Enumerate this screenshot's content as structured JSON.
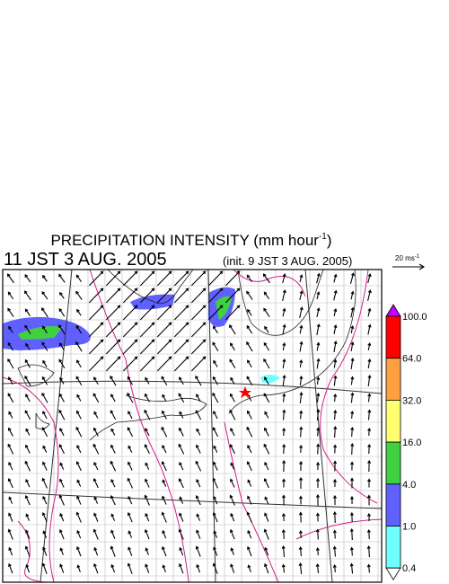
{
  "header": {
    "title": "PRECIPITATION INTENSITY (mm hour",
    "title_exponent": "-1",
    "title_close": ")",
    "valid_time": "11 JST 3 AUG. 2005",
    "init_time": "(init. 9 JST 3 AUG. 2005)"
  },
  "vector_legend": {
    "label": "20 ms",
    "exponent": "-1"
  },
  "colorbar": {
    "labels": [
      "100.0",
      "64.0",
      "32.0",
      "16.0",
      "4.0",
      "1.0",
      "0.4"
    ],
    "colors": [
      "#ff0000",
      "#ffa040",
      "#ffff70",
      "#40d040",
      "#6060ff",
      "#70ffff"
    ],
    "over_color": "#c000ff",
    "under_color": "#ffffff"
  }
}
